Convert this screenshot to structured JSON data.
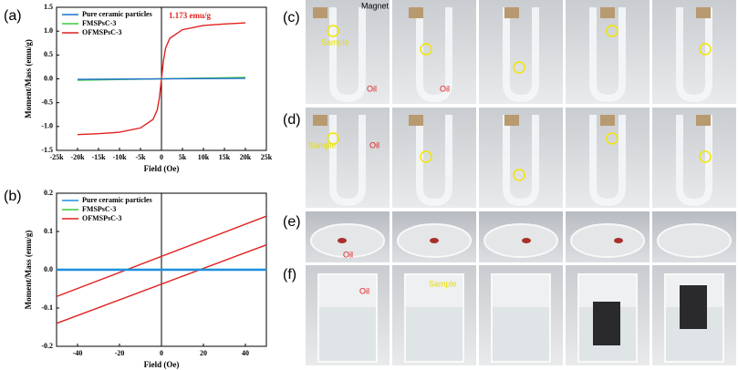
{
  "chart_data": [
    {
      "type": "line",
      "panel_label": "(a)",
      "xlabel": "Field (Oe)",
      "ylabel": "Moment/Mass (emu/g)",
      "xlim": [
        -25000,
        25000
      ],
      "xticks": [
        {
          "value": -25000,
          "label": "-25k"
        },
        {
          "value": -20000,
          "label": "-20k"
        },
        {
          "value": -15000,
          "label": "-15k"
        },
        {
          "value": -10000,
          "label": "-10k"
        },
        {
          "value": -5000,
          "label": "-5k"
        },
        0,
        {
          "value": 5000,
          "label": "5k"
        },
        {
          "value": 10000,
          "label": "10k"
        },
        {
          "value": 15000,
          "label": "15k"
        },
        {
          "value": 20000,
          "label": "20k"
        },
        {
          "value": 25000,
          "label": "25k"
        }
      ],
      "ylim": [
        -1.5,
        1.5
      ],
      "yticks": [
        -1.5,
        {
          "value": -1,
          "label": "-1.0"
        },
        -0.5,
        {
          "value": 0,
          "label": "0.0"
        },
        0.5,
        {
          "value": 1,
          "label": "1.0"
        },
        1.5
      ],
      "annotation": "1.173 emu/g",
      "series": [
        {
          "name": "Pure ceramic particles",
          "color": "#1f6fd0",
          "x": [
            -20000,
            20000
          ],
          "values": [
            -0.01,
            0.01
          ]
        },
        {
          "name": "FMSPsC-3",
          "color": "#3cc83c",
          "x": [
            -20000,
            20000
          ],
          "values": [
            -0.03,
            0.03
          ]
        },
        {
          "name": "OFMSPsC-3",
          "color": "#e0211f",
          "x": [
            -20000,
            -15000,
            -10000,
            -5000,
            -2000,
            -1000,
            -500,
            0,
            500,
            1000,
            2000,
            5000,
            10000,
            15000,
            20000
          ],
          "values": [
            -1.17,
            -1.15,
            -1.12,
            -1.03,
            -0.85,
            -0.65,
            -0.4,
            0,
            0.4,
            0.65,
            0.85,
            1.03,
            1.12,
            1.15,
            1.173
          ]
        }
      ]
    },
    {
      "type": "line",
      "panel_label": "(b)",
      "xlabel": "Field (Oe)",
      "ylabel": "Moment/Mass (emu/g)",
      "xlim": [
        -50,
        50
      ],
      "xticks": [
        -40,
        -20,
        0,
        20,
        40
      ],
      "ylim": [
        -0.2,
        0.2
      ],
      "yticks": [
        -0.2,
        -0.1,
        {
          "value": 0,
          "label": "0.0"
        },
        0.1,
        0.2
      ],
      "series": [
        {
          "name": "Pure ceramic particles",
          "color": "#1f8fe0",
          "x": [
            -50,
            50
          ],
          "values": [
            0,
            0
          ]
        },
        {
          "name": "FMSPsC-3",
          "color": "#3cc83c",
          "x": [
            -50,
            50
          ],
          "values": [
            0.001,
            0.001
          ]
        },
        {
          "name": "OFMSPsC-3",
          "color": "#e0211f",
          "x": [
            -50,
            50,
            0,
            -50,
            50
          ],
          "values": [
            -0.07,
            0.14,
            null,
            -0.14,
            0.065
          ]
        }
      ]
    }
  ],
  "photo_panels": [
    {
      "label": "(c)",
      "notes": [
        "Magnet",
        "Sample",
        "Oil",
        "Oil"
      ]
    },
    {
      "label": "(d)",
      "notes": [
        "Sample",
        "Oil"
      ]
    },
    {
      "label": "(e)",
      "notes": [
        "Oil"
      ]
    },
    {
      "label": "(f)",
      "notes": [
        "Oil",
        "Sample"
      ]
    }
  ]
}
